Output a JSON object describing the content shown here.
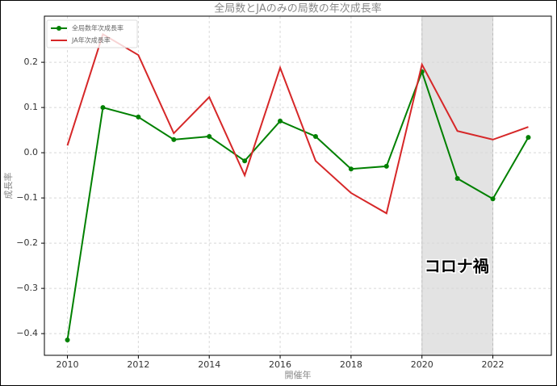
{
  "chart_data": {
    "type": "line",
    "title": "全局数とJAのみの局数の年次成長率",
    "x_label": "開催年",
    "y_label": "成長率",
    "x": [
      2010,
      2011,
      2012,
      2013,
      2014,
      2015,
      2016,
      2017,
      2018,
      2019,
      2020,
      2021,
      2022,
      2023
    ],
    "series": [
      {
        "name": "全局数年次成長率",
        "color": "#008000",
        "marker": true,
        "values": [
          -0.414,
          0.1,
          0.079,
          0.029,
          0.036,
          -0.018,
          0.07,
          0.036,
          -0.036,
          -0.03,
          0.179,
          -0.057,
          -0.102,
          0.034
        ]
      },
      {
        "name": "JA年次成長率",
        "color": "#d62728",
        "marker": false,
        "values": [
          0.016,
          0.262,
          0.216,
          0.043,
          0.123,
          -0.05,
          0.188,
          -0.018,
          -0.089,
          -0.134,
          0.195,
          0.048,
          0.029,
          0.057
        ]
      }
    ],
    "xlim": [
      2009.35,
      2023.65
    ],
    "ylim": [
      -0.448,
      0.302
    ],
    "xticks": [
      2010,
      2012,
      2014,
      2016,
      2018,
      2020,
      2022
    ],
    "yticks": [
      {
        "value": -0.4,
        "label": "−0.4"
      },
      {
        "value": -0.3,
        "label": "−0.3"
      },
      {
        "value": -0.2,
        "label": "−0.2"
      },
      {
        "value": -0.1,
        "label": "−0.1"
      },
      {
        "value": 0,
        "label": "0.0"
      },
      0.1,
      0.2
    ],
    "grid": true,
    "legend": "upper-left",
    "shade_x": [
      2020,
      2022
    ],
    "shade_color": "#e3e3e3",
    "annotation": "コロナ禍"
  }
}
